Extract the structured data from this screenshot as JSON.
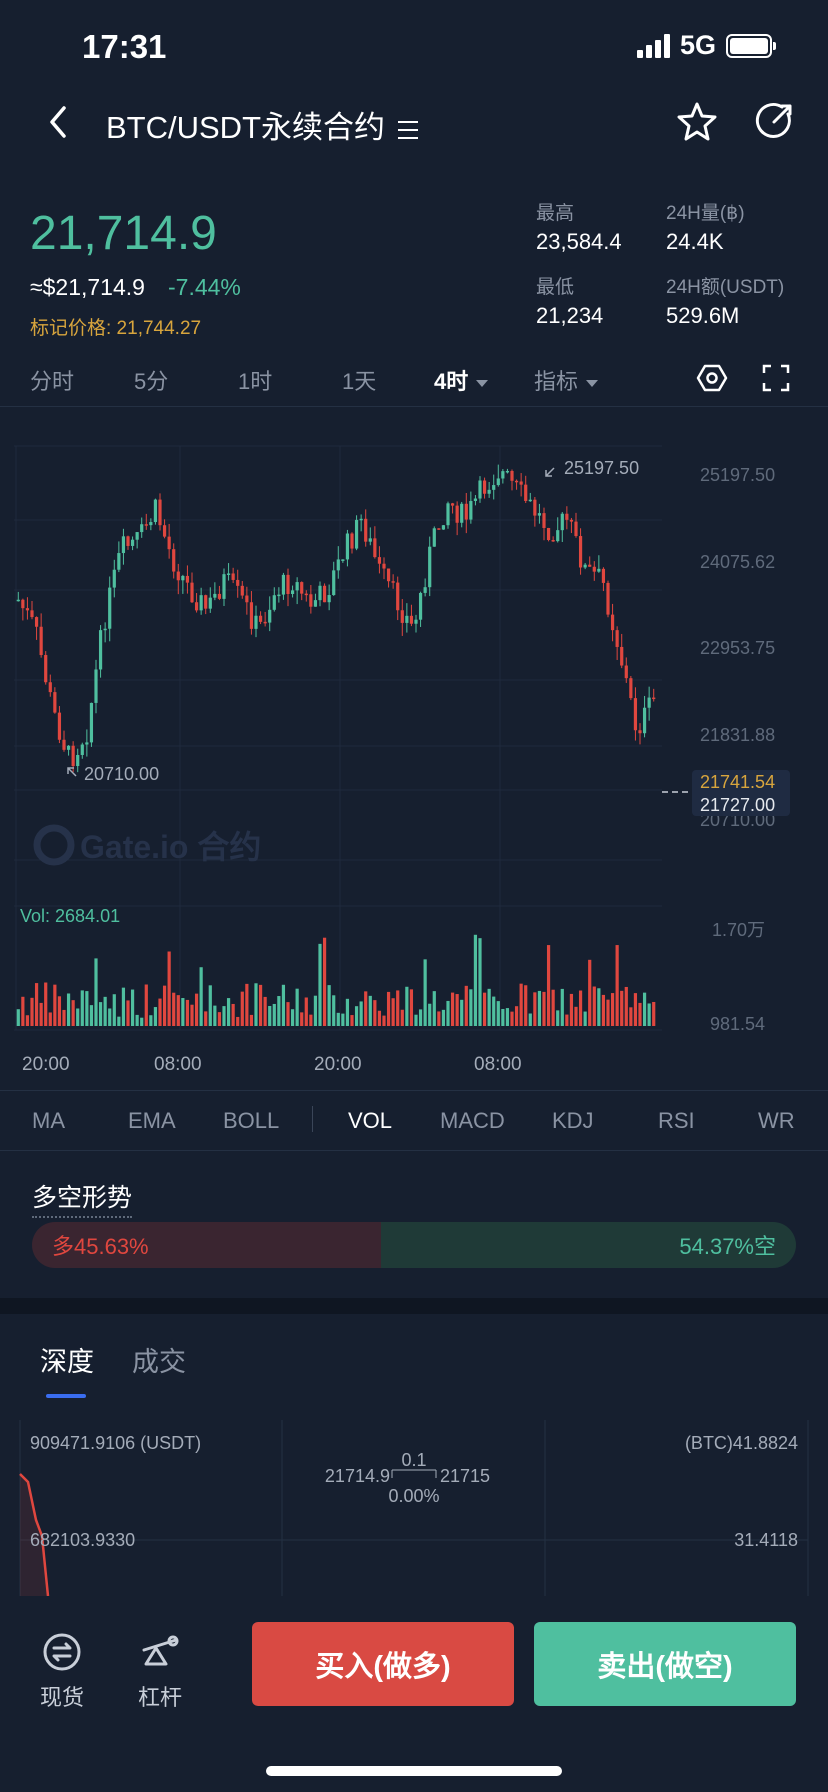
{
  "status": {
    "time": "17:31",
    "network": "5G"
  },
  "nav": {
    "title": "BTC/USDT永续合约"
  },
  "price": {
    "last": "21,714.9",
    "usd": "≈$21,714.9",
    "change_pct": "-7.44%",
    "mark_label": "标记价格: 21,744.27"
  },
  "stats": {
    "high_label": "最高",
    "high_value": "23,584.4",
    "vol_label": "24H量(฿)",
    "vol_value": "24.4K",
    "low_label": "最低",
    "low_value": "21,234",
    "amount_label": "24H额(USDT)",
    "amount_value": "529.6M"
  },
  "intervals": [
    "分时",
    "5分",
    "1时",
    "1天",
    "4时",
    "指标"
  ],
  "intervals_active": "4时",
  "chart": {
    "y_axis": [
      "25197.50",
      "24075.62",
      "22953.75",
      "21831.88",
      "20710.00"
    ],
    "max_marker": "25197.50",
    "min_marker": "20710.00",
    "mark_price_tag": "21741.54",
    "last_price_tag": "21727.00",
    "watermark": "Gate.io 合约",
    "vol_label": "Vol: 2684.01",
    "vol_axis": [
      "1.70万",
      "981.54"
    ],
    "time_axis": [
      "20:00",
      "08:00",
      "20:00",
      "08:00"
    ]
  },
  "indicators": [
    "MA",
    "EMA",
    "BOLL",
    "VOL",
    "MACD",
    "KDJ",
    "RSI",
    "WR"
  ],
  "indicators_active": "VOL",
  "long_short": {
    "title": "多空形势",
    "long_label": "多45.63%",
    "short_label": "54.37%空",
    "long_fraction": 0.4563
  },
  "depth": {
    "tabs": [
      "深度",
      "成交"
    ],
    "active_tab": "深度",
    "left_top": "909471.9106 (USDT)",
    "right_top": "(BTC)41.8824",
    "left_mid": "682103.9330",
    "right_mid": "31.4118",
    "spread": "0.1",
    "bid": "21714.9",
    "ask": "21715",
    "spread_pct": "0.00%"
  },
  "bottom": {
    "spot_label": "现货",
    "margin_label": "杠杆",
    "buy_label": "买入(做多)",
    "sell_label": "卖出(做空)"
  },
  "colors": {
    "up": "#4fbf9f",
    "down": "#e0473f",
    "bg": "#161f2f",
    "mark": "#d8a53d"
  }
}
